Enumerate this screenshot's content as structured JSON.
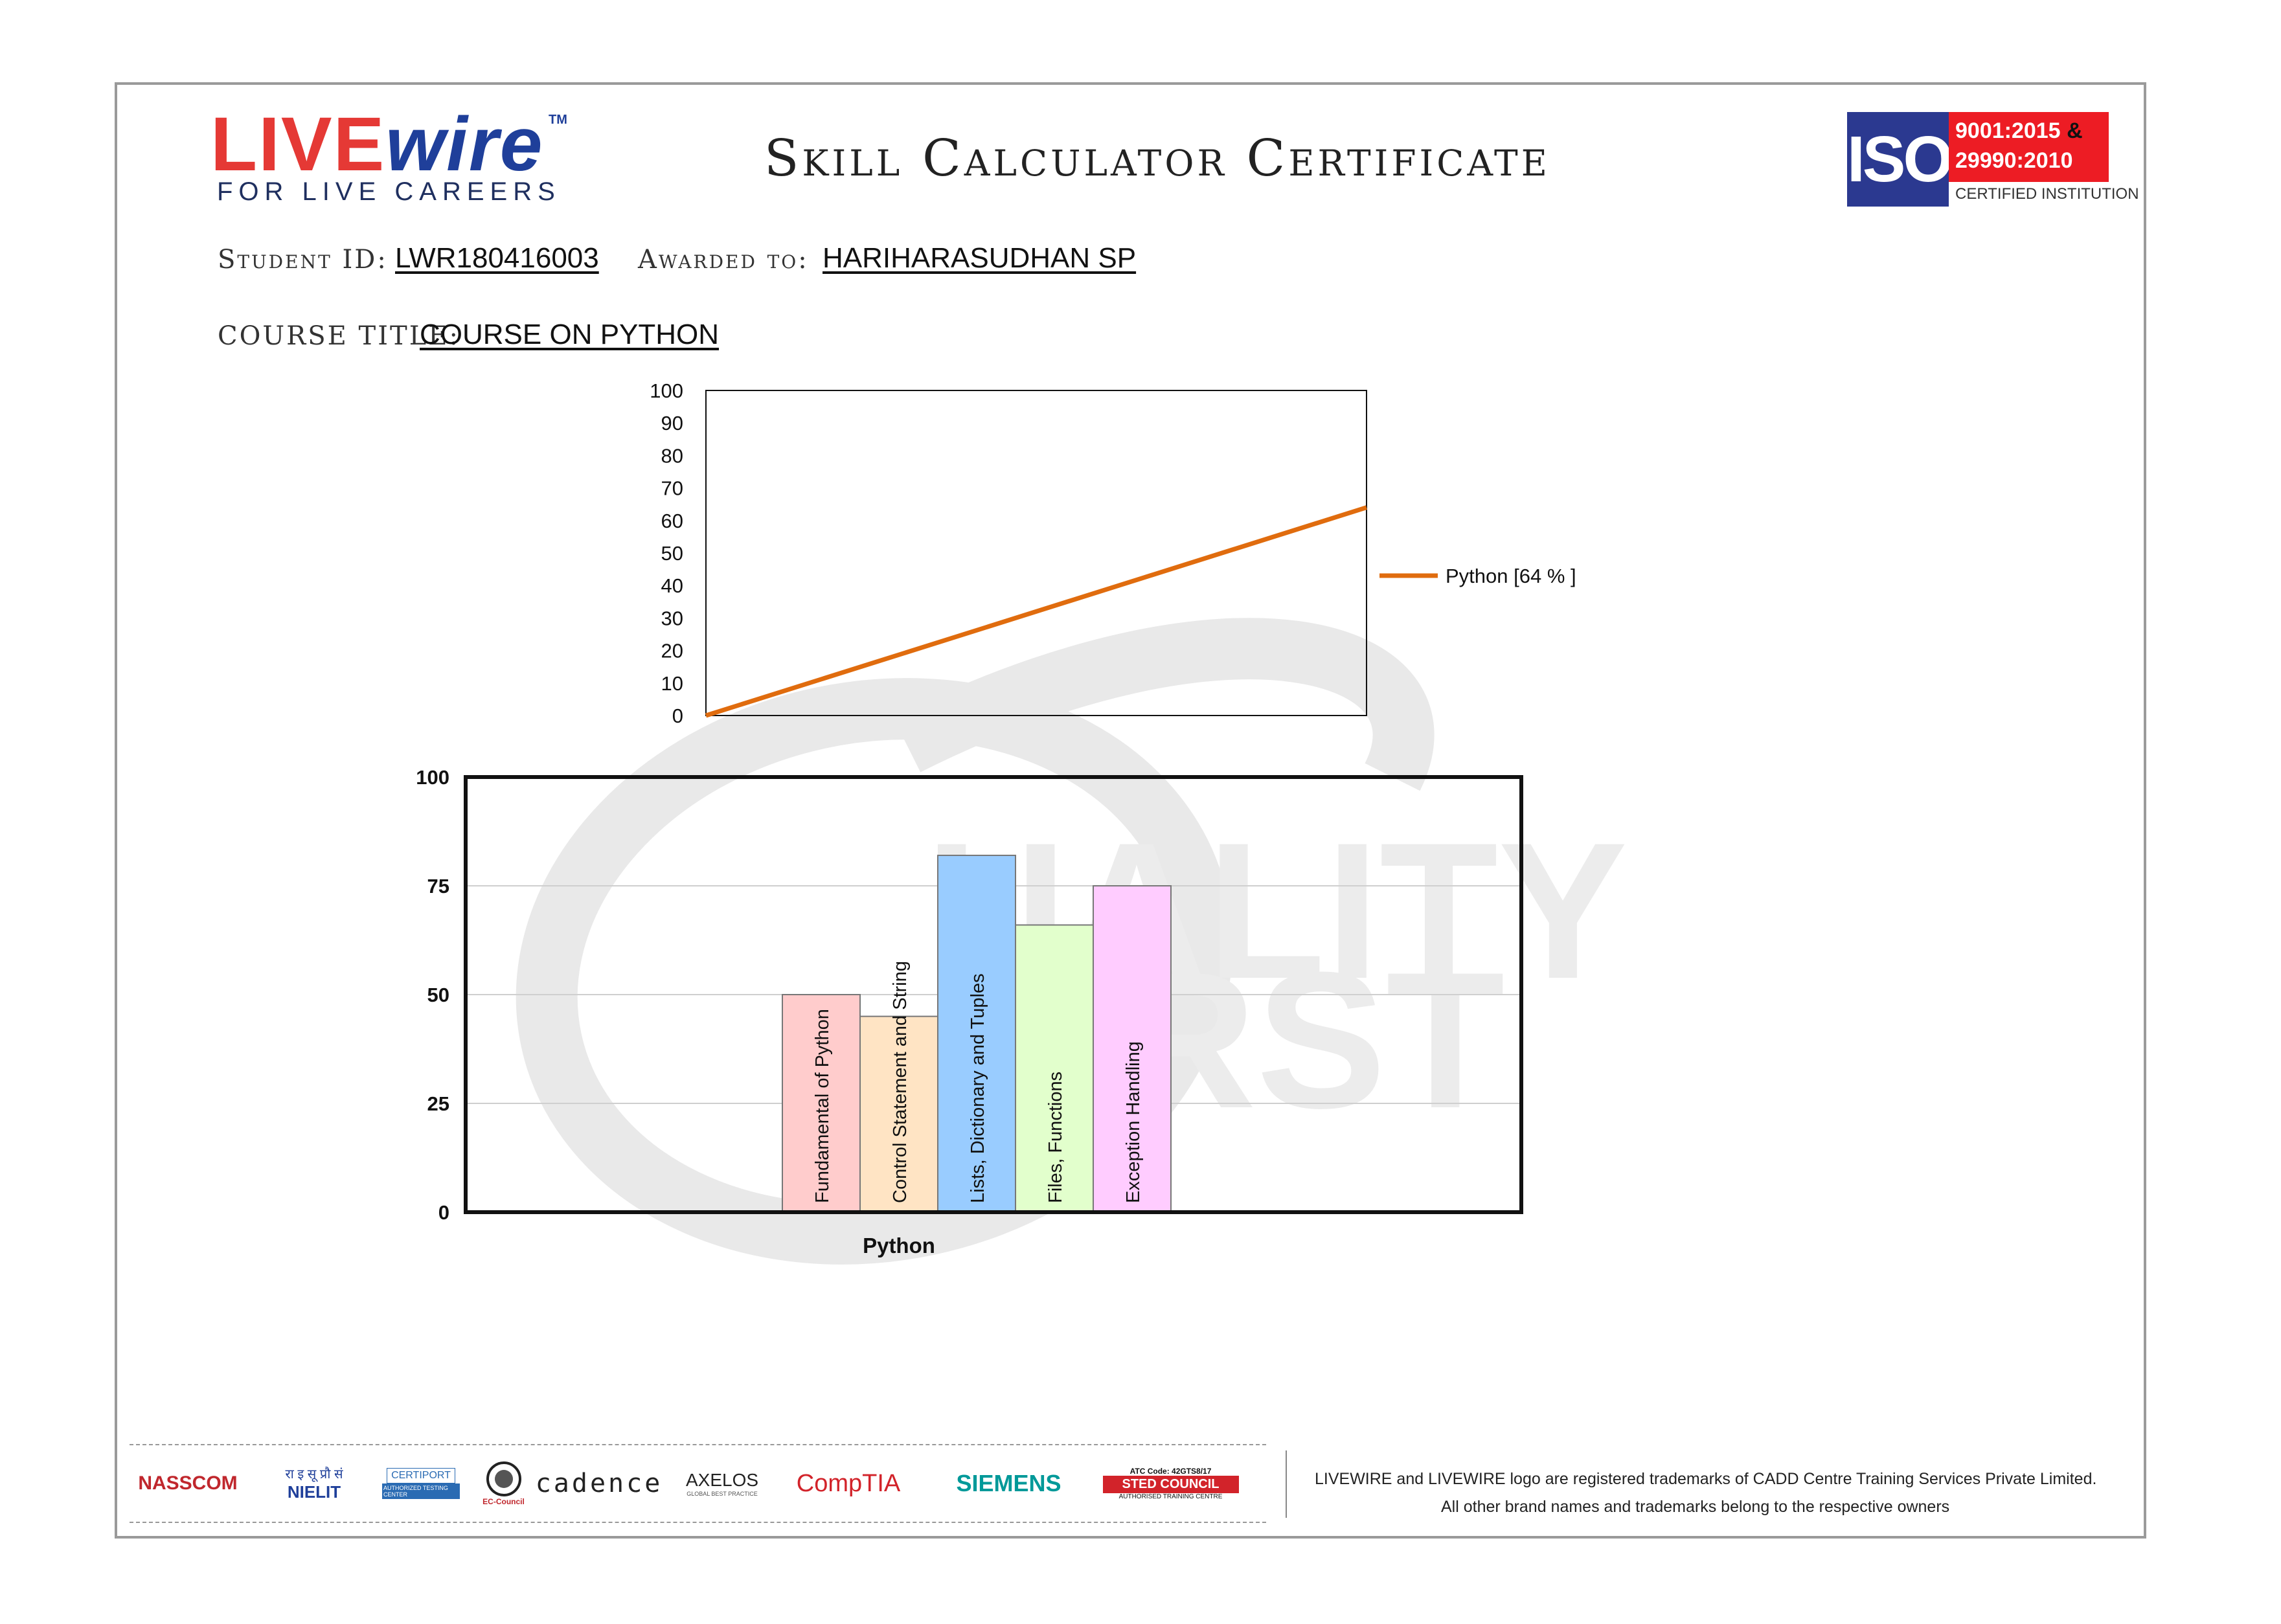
{
  "header": {
    "logo_live": "LIVE",
    "logo_wire": "wire",
    "logo_tm": "TM",
    "logo_tagline": "FOR LIVE CAREERS",
    "title": "Skill Calculator Certificate",
    "iso_logo": "ISO",
    "iso_line1": "9001:2015",
    "iso_amp": "&",
    "iso_line2": "29990:2010",
    "iso_line3": "CERTIFIED INSTITUTION"
  },
  "fields": {
    "student_id_label": "Student ID:",
    "student_id": "LWR180416003",
    "awarded_to_label": "Awarded to:",
    "awarded_to": "HARIHARASUDHAN SP",
    "course_title_label": "COURSE TITLE:",
    "course_title": "COURSE ON PYTHON"
  },
  "watermark": {
    "text1": "UALITY",
    "text2": "IRST"
  },
  "chart_data": [
    {
      "type": "line",
      "title": "",
      "ylim": [
        0,
        100
      ],
      "yticks": [
        0,
        10,
        20,
        30,
        40,
        50,
        60,
        70,
        80,
        90,
        100
      ],
      "series": [
        {
          "name": "Python [64 % ]",
          "color": "#e06c0e",
          "values": [
            0,
            64
          ]
        }
      ],
      "legend": "right"
    },
    {
      "type": "bar",
      "xlabel": "Python",
      "ylim": [
        0,
        100
      ],
      "yticks": [
        0,
        25,
        50,
        75,
        100
      ],
      "grid": true,
      "categories": [
        "Fundamental of Python",
        "Control Statement and String",
        "Lists, Dictionary and Tuples",
        "Files, Functions",
        "Exception Handling"
      ],
      "values": [
        50,
        45,
        82,
        66,
        75
      ],
      "colors": [
        "#ffcccc",
        "#ffe4c4",
        "#99ccff",
        "#e2ffcc",
        "#ffccff"
      ]
    }
  ],
  "footer": {
    "partners": [
      "NASSCOM",
      "NIELIT",
      "CERTIPORT",
      "EC-Council",
      "cadence",
      "AXELOS",
      "CompTIA",
      "SIEMENS",
      "STED COUNCIL"
    ],
    "nielit_hindi": "रा इ सू प्रौ सं",
    "certiport_sub": "AUTHORIZED TESTING CENTER",
    "axelos_sub": "GLOBAL BEST PRACTICE",
    "sted_atc": "ATC Code: 42GTS8/17",
    "sted_sub": "AUTHORISED TRAINING CENTRE",
    "line1": "LIVEWIRE and LIVEWIRE logo are registered trademarks of CADD Centre Training Services Private Limited.",
    "line2": "All other  brand names and trademarks belong to the respective owners"
  }
}
